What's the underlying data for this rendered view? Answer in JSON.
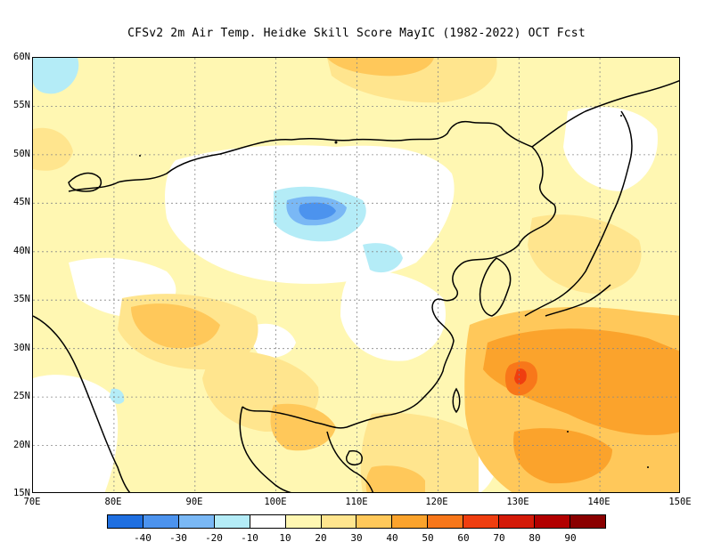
{
  "title": "CFSv2  2m Air Temp. Heidke Skill Score MayIC (1982-2022) OCT Fcst",
  "lat_labels": [
    "60N",
    "55N",
    "50N",
    "45N",
    "40N",
    "35N",
    "30N",
    "25N",
    "20N",
    "15N"
  ],
  "lon_labels": [
    "70E",
    "80E",
    "90E",
    "100E",
    "110E",
    "120E",
    "130E",
    "140E",
    "150E"
  ],
  "colorbar": {
    "colors": [
      "#1f6fe0",
      "#4c93ee",
      "#7ab8f5",
      "#b4ecf7",
      "#ffffff",
      "#fff7b2",
      "#ffe58e",
      "#ffc85a",
      "#fba32c",
      "#f8771a",
      "#ef3e10",
      "#d41a08",
      "#b20000",
      "#8a0000"
    ],
    "labels": [
      "-40",
      "-30",
      "-20",
      "-10",
      "10",
      "20",
      "30",
      "40",
      "50",
      "60",
      "70",
      "80",
      "90"
    ]
  }
}
